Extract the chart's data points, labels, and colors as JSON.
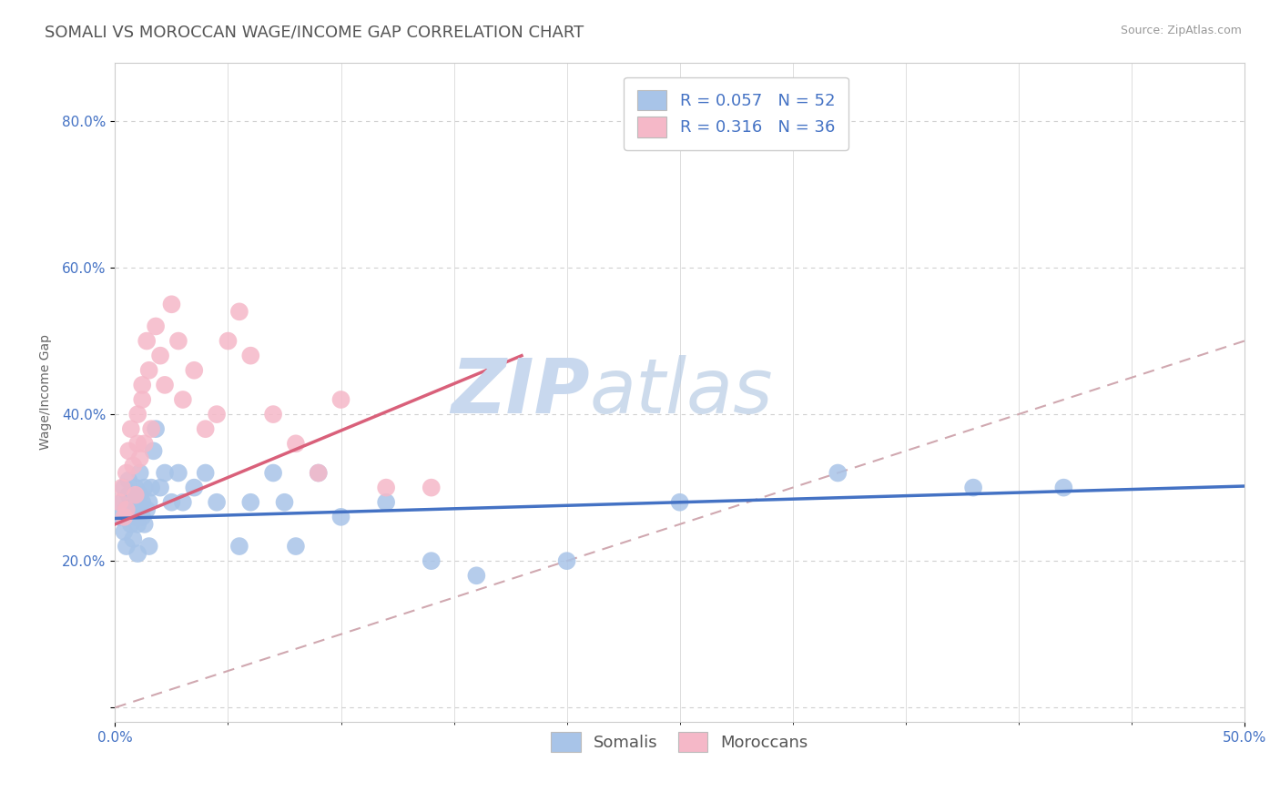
{
  "title": "SOMALI VS MOROCCAN WAGE/INCOME GAP CORRELATION CHART",
  "source_text": "Source: ZipAtlas.com",
  "ylabel": "Wage/Income Gap",
  "xlim": [
    0.0,
    0.5
  ],
  "ylim": [
    -0.02,
    0.88
  ],
  "yticks": [
    0.0,
    0.2,
    0.4,
    0.6,
    0.8
  ],
  "yticklabels": [
    "",
    "20.0%",
    "40.0%",
    "60.0%",
    "80.0%"
  ],
  "xtick_major": [
    0.0,
    0.5
  ],
  "xticklabels_major": [
    "0.0%",
    "50.0%"
  ],
  "xtick_minor": [
    0.05,
    0.1,
    0.15,
    0.2,
    0.25,
    0.3,
    0.35,
    0.4,
    0.45
  ],
  "grid_color": "#d0d0d0",
  "background_color": "#ffffff",
  "somali_color": "#a8c4e8",
  "moroccan_color": "#f5b8c8",
  "somali_line_color": "#4472c4",
  "moroccan_line_color": "#d9607a",
  "diag_line_color": "#d0a8b0",
  "watermark_zip": "ZIP",
  "watermark_atlas": "atlas",
  "watermark_color": "#c8d8ee",
  "legend_R_somali": "0.057",
  "legend_N_somali": "52",
  "legend_R_moroccan": "0.316",
  "legend_N_moroccan": "36",
  "legend_text_color": "#4472c4",
  "somali_scatter_x": [
    0.002,
    0.003,
    0.004,
    0.004,
    0.005,
    0.005,
    0.006,
    0.006,
    0.007,
    0.007,
    0.008,
    0.008,
    0.009,
    0.009,
    0.01,
    0.01,
    0.01,
    0.011,
    0.011,
    0.012,
    0.012,
    0.013,
    0.013,
    0.014,
    0.015,
    0.015,
    0.016,
    0.017,
    0.018,
    0.02,
    0.022,
    0.025,
    0.028,
    0.03,
    0.035,
    0.04,
    0.045,
    0.055,
    0.06,
    0.07,
    0.075,
    0.08,
    0.09,
    0.1,
    0.12,
    0.14,
    0.16,
    0.2,
    0.25,
    0.32,
    0.38,
    0.42
  ],
  "somali_scatter_y": [
    0.26,
    0.28,
    0.24,
    0.3,
    0.27,
    0.22,
    0.29,
    0.31,
    0.25,
    0.28,
    0.27,
    0.23,
    0.3,
    0.26,
    0.28,
    0.25,
    0.21,
    0.29,
    0.32,
    0.26,
    0.28,
    0.3,
    0.25,
    0.27,
    0.28,
    0.22,
    0.3,
    0.35,
    0.38,
    0.3,
    0.32,
    0.28,
    0.32,
    0.28,
    0.3,
    0.32,
    0.28,
    0.22,
    0.28,
    0.32,
    0.28,
    0.22,
    0.32,
    0.26,
    0.28,
    0.2,
    0.18,
    0.2,
    0.28,
    0.32,
    0.3,
    0.3
  ],
  "moroccan_scatter_x": [
    0.002,
    0.003,
    0.004,
    0.005,
    0.005,
    0.006,
    0.007,
    0.008,
    0.009,
    0.01,
    0.01,
    0.011,
    0.012,
    0.012,
    0.013,
    0.014,
    0.015,
    0.016,
    0.018,
    0.02,
    0.022,
    0.025,
    0.028,
    0.03,
    0.035,
    0.04,
    0.045,
    0.05,
    0.055,
    0.06,
    0.07,
    0.08,
    0.09,
    0.1,
    0.12,
    0.14
  ],
  "moroccan_scatter_y": [
    0.28,
    0.3,
    0.26,
    0.32,
    0.27,
    0.35,
    0.38,
    0.33,
    0.29,
    0.36,
    0.4,
    0.34,
    0.42,
    0.44,
    0.36,
    0.5,
    0.46,
    0.38,
    0.52,
    0.48,
    0.44,
    0.55,
    0.5,
    0.42,
    0.46,
    0.38,
    0.4,
    0.5,
    0.54,
    0.48,
    0.4,
    0.36,
    0.32,
    0.42,
    0.3,
    0.3
  ],
  "title_fontsize": 13,
  "axis_label_fontsize": 10,
  "tick_fontsize": 11,
  "legend_fontsize": 13,
  "source_fontsize": 9
}
